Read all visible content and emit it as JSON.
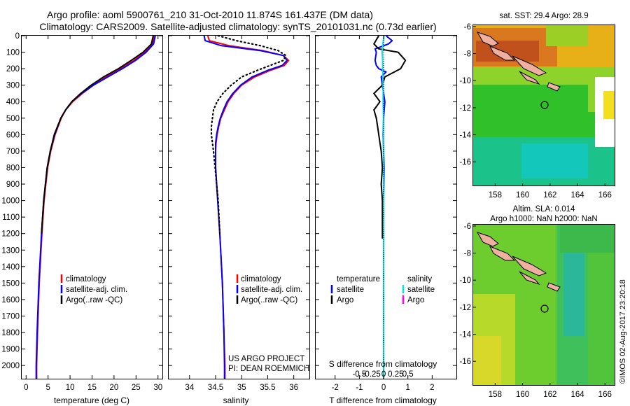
{
  "header": {
    "line1": "Argo profile: aoml 5900761_210 31-Oct-2010 11.874S 161.437E (DM data)",
    "line2": "Climatology: CARS2009. Satellite-adjusted climatology: synTS_20101031.nc (0.73d earlier)"
  },
  "colors": {
    "climatology": "#ff0000",
    "satellite": "#0000ff",
    "argo": "#000000",
    "sal_satellite": "#00e5ee",
    "sal_argo": "#ff00ff"
  },
  "chart_data": [
    {
      "type": "line",
      "name": "temperature-profile",
      "xlabel": "temperature (deg C)",
      "ylabel": "",
      "xlim": [
        -1,
        31
      ],
      "ylim": [
        2080,
        0
      ],
      "xticks": [
        0,
        5,
        10,
        15,
        20,
        25,
        30
      ],
      "yticks": [
        0,
        100,
        200,
        300,
        400,
        500,
        600,
        700,
        800,
        900,
        1000,
        1100,
        1200,
        1300,
        1400,
        1500,
        1600,
        1700,
        1800,
        1900,
        2000
      ],
      "series": [
        {
          "name": "climatology",
          "color": "#ff0000",
          "depth": [
            0,
            50,
            100,
            150,
            200,
            250,
            300,
            350,
            400,
            450,
            500,
            600,
            700,
            800,
            900,
            1000,
            1200,
            1500,
            1800,
            2000,
            2080
          ],
          "values": [
            29.1,
            28.8,
            27.0,
            24.5,
            21.5,
            18.2,
            15.3,
            12.8,
            10.6,
            9.0,
            8.0,
            6.6,
            5.6,
            4.9,
            4.5,
            4.1,
            3.6,
            3.0,
            2.6,
            2.4,
            2.4
          ]
        },
        {
          "name": "satellite-adj. clim.",
          "color": "#0000ff",
          "depth": [
            0,
            50,
            100,
            150,
            200,
            250,
            300,
            350,
            400,
            450,
            500,
            600,
            700,
            800,
            900,
            1000,
            1200,
            1500,
            1800,
            2000,
            2080
          ],
          "values": [
            29.4,
            29.0,
            27.3,
            24.9,
            21.9,
            18.6,
            15.3,
            12.6,
            10.4,
            9.0,
            7.9,
            6.5,
            5.5,
            4.8,
            4.4,
            4.0,
            3.5,
            2.9,
            2.5,
            2.3,
            2.3
          ]
        },
        {
          "name": "Argo(..raw -QC)",
          "color": "#000000",
          "depth": [
            0,
            50,
            100,
            150,
            200,
            250,
            300,
            350,
            400,
            450,
            500,
            600,
            700,
            800,
            900,
            1000,
            1200
          ],
          "values": [
            28.9,
            28.5,
            26.6,
            23.9,
            21.0,
            17.6,
            14.8,
            12.4,
            10.4,
            9.0,
            7.9,
            6.4,
            5.5,
            4.8,
            4.4,
            4.0,
            3.5
          ]
        }
      ],
      "legend": [
        "climatology",
        "satellite-adj. clim.",
        "Argo(..raw -QC)"
      ]
    },
    {
      "type": "line",
      "name": "salinity-profile",
      "xlabel": "salinity",
      "xlim": [
        33.6,
        36.3
      ],
      "ylim": [
        2080,
        0
      ],
      "xticks": [
        34,
        34.5,
        35,
        35.5,
        36
      ],
      "series": [
        {
          "name": "climatology",
          "color": "#ff0000",
          "depth": [
            0,
            30,
            60,
            90,
            120,
            150,
            180,
            210,
            250,
            300,
            350,
            400,
            450,
            500,
            550,
            600,
            650,
            700,
            800,
            900,
            1000,
            1200,
            1500,
            1800,
            2000,
            2080
          ],
          "values": [
            34.35,
            34.38,
            34.75,
            35.4,
            35.8,
            35.9,
            35.82,
            35.55,
            35.25,
            35.0,
            34.85,
            34.74,
            34.67,
            34.6,
            34.56,
            34.53,
            34.51,
            34.5,
            34.5,
            34.52,
            34.54,
            34.58,
            34.63,
            34.66,
            34.68,
            34.68
          ]
        },
        {
          "name": "satellite-adj. clim.",
          "color": "#0000ff",
          "depth": [
            0,
            30,
            60,
            90,
            120,
            150,
            180,
            210,
            250,
            300,
            350,
            400,
            450,
            500,
            550,
            600,
            650,
            700,
            800,
            900,
            1000,
            1200,
            1500,
            1800,
            2000,
            2080
          ],
          "values": [
            34.28,
            34.3,
            34.6,
            35.35,
            35.8,
            35.87,
            35.78,
            35.5,
            35.2,
            34.98,
            34.83,
            34.72,
            34.65,
            34.59,
            34.55,
            34.52,
            34.5,
            34.5,
            34.5,
            34.52,
            34.54,
            34.58,
            34.63,
            34.66,
            34.67,
            34.67
          ]
        },
        {
          "name": "Argo(..raw -QC)",
          "color": "#000000",
          "dotted": true,
          "depth": [
            0,
            30,
            60,
            90,
            120,
            150,
            180,
            210,
            250,
            300,
            350,
            400,
            450,
            500,
            550,
            600,
            650,
            700,
            800,
            900,
            1000,
            1200
          ],
          "values": [
            34.55,
            34.9,
            35.35,
            35.7,
            35.85,
            35.8,
            35.55,
            35.3,
            35.0,
            34.8,
            34.64,
            34.53,
            34.46,
            34.44,
            34.42,
            34.42,
            34.44,
            34.46,
            34.49,
            34.52,
            34.55,
            34.58
          ]
        }
      ],
      "legend": [
        "climatology",
        "satellite-adj. clim.",
        "Argo(..raw -QC)"
      ],
      "annotation": [
        "US ARGO PROJECT",
        "PI: DEAN ROEMMICH"
      ]
    },
    {
      "type": "line",
      "name": "difference-profile",
      "xlabel": "T difference from climatology",
      "xlabel_top": "S difference from climatology",
      "xlim": [
        -2.8,
        3.0
      ],
      "ylim": [
        2080,
        0
      ],
      "xticks": [
        -2,
        -1,
        0,
        1,
        2
      ],
      "sticks": [
        -0.5,
        -0.25,
        0,
        0.25,
        0.5
      ],
      "series": [
        {
          "name": "temperature satellite",
          "color": "#0000ff",
          "depth": [
            0,
            30,
            50,
            80,
            100,
            150,
            180,
            200,
            220,
            250,
            300,
            400,
            500,
            600,
            800,
            1000,
            1200,
            1500,
            1800,
            2000,
            2080
          ],
          "values": [
            0.1,
            0.35,
            0.2,
            -0.35,
            -0.3,
            -0.35,
            -0.3,
            -0.2,
            0.1,
            -0.1,
            -0.05,
            0.05,
            0.0,
            -0.02,
            0.02,
            0.0,
            0.0,
            0.0,
            0.0,
            0.0,
            0.0
          ]
        },
        {
          "name": "temperature Argo",
          "color": "#000000",
          "depth": [
            0,
            50,
            80,
            100,
            150,
            200,
            250,
            300,
            350,
            400,
            450,
            500,
            550,
            600,
            650,
            700,
            800,
            900,
            1000,
            1100,
            1200,
            1230
          ],
          "values": [
            -0.2,
            -0.4,
            -0.2,
            0.6,
            0.9,
            0.7,
            0.05,
            -0.05,
            -0.4,
            -0.15,
            -0.4,
            -0.3,
            -0.25,
            -0.2,
            -0.15,
            -0.1,
            -0.05,
            -0.1,
            -0.05,
            -0.05,
            -0.05,
            -0.05
          ]
        },
        {
          "name": "salinity satellite",
          "color": "#00e5ee",
          "depth": [
            0,
            50,
            100,
            150,
            200,
            250,
            300,
            400,
            500,
            600,
            800,
            1000,
            1200,
            1500,
            1800,
            2000,
            2080
          ],
          "values": [
            0.02,
            -0.03,
            -0.06,
            -0.04,
            -0.04,
            -0.03,
            -0.02,
            -0.02,
            -0.01,
            -0.01,
            0.0,
            0.0,
            0.0,
            0.0,
            0.0,
            0.0,
            0.0
          ]
        }
      ],
      "legend": {
        "col1_title": "temperature",
        "col2_title": "salinity",
        "col1": [
          "satellite",
          "Argo"
        ],
        "col2": [
          "satellite",
          "Argo"
        ]
      }
    }
  ],
  "maps": {
    "top": {
      "title": "sat. SST: 29.4  Argo: 28.9",
      "xticks": [
        "158",
        "160",
        "162",
        "164",
        "166"
      ],
      "yticks": [
        "-6",
        "-8",
        "-10",
        "-12",
        "-14",
        "-16"
      ]
    },
    "bottom": {
      "title1": "Altim. SLA: 0.014",
      "title2": "Argo h1000: NaN h2000: NaN",
      "xticks": [
        "158",
        "160",
        "162",
        "164",
        "166"
      ],
      "yticks": [
        "-6",
        "-8",
        "-10",
        "-12",
        "-14",
        "-16"
      ]
    },
    "profile_location": {
      "lon": 161.437,
      "lat": -11.874
    }
  },
  "footer_vertical": "©IMOS 02-Aug-2017 23:20:18"
}
